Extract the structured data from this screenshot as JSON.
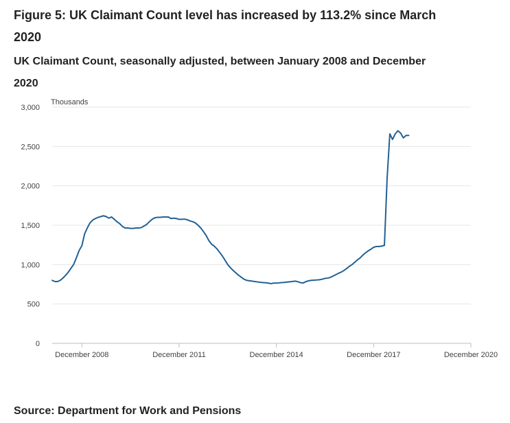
{
  "figure": {
    "title": "Figure 5: UK Claimant Count level has increased by 113.2% since March 2020",
    "subtitle": "UK Claimant Count, seasonally adjusted, between January 2008 and December 2020",
    "source": "Source: Department for Work and Pensions"
  },
  "colors": {
    "line": "#206095",
    "grid": "#e6e6e6",
    "axis": "#bebebe"
  },
  "chart_data": {
    "type": "line",
    "title": "UK Claimant Count, seasonally adjusted, between January 2008 and December 2020",
    "xlabel": "",
    "ylabel": "Thousands",
    "ylim": [
      0,
      3000
    ],
    "yticks": [
      0,
      500,
      1000,
      1500,
      2000,
      2500,
      3000
    ],
    "ytick_labels": [
      "0",
      "500",
      "1,000",
      "1,500",
      "2,000",
      "2,500",
      "3,000"
    ],
    "xticks": [
      {
        "month_index": 11,
        "label": "December 2008"
      },
      {
        "month_index": 47,
        "label": "December 2011"
      },
      {
        "month_index": 83,
        "label": "December 2014"
      },
      {
        "month_index": 119,
        "label": "December 2017"
      },
      {
        "month_index": 155,
        "label": "December 2020"
      }
    ],
    "x_start": "January 2008",
    "x_end": "December 2020",
    "grid": true,
    "series": [
      {
        "name": "UK Claimant Count",
        "points": [
          [
            0,
            800
          ],
          [
            1,
            785
          ],
          [
            2,
            785
          ],
          [
            3,
            800
          ],
          [
            4,
            830
          ],
          [
            5,
            865
          ],
          [
            6,
            905
          ],
          [
            7,
            955
          ],
          [
            8,
            1005
          ],
          [
            9,
            1090
          ],
          [
            10,
            1180
          ],
          [
            11,
            1240
          ],
          [
            12,
            1390
          ],
          [
            13,
            1465
          ],
          [
            14,
            1530
          ],
          [
            15,
            1565
          ],
          [
            16,
            1585
          ],
          [
            17,
            1600
          ],
          [
            18,
            1610
          ],
          [
            19,
            1620
          ],
          [
            20,
            1610
          ],
          [
            21,
            1590
          ],
          [
            22,
            1605
          ],
          [
            23,
            1575
          ],
          [
            24,
            1545
          ],
          [
            25,
            1520
          ],
          [
            26,
            1485
          ],
          [
            27,
            1465
          ],
          [
            28,
            1465
          ],
          [
            29,
            1460
          ],
          [
            30,
            1460
          ],
          [
            31,
            1465
          ],
          [
            32,
            1465
          ],
          [
            33,
            1470
          ],
          [
            34,
            1490
          ],
          [
            35,
            1510
          ],
          [
            36,
            1545
          ],
          [
            37,
            1575
          ],
          [
            38,
            1595
          ],
          [
            39,
            1600
          ],
          [
            40,
            1600
          ],
          [
            41,
            1605
          ],
          [
            42,
            1605
          ],
          [
            43,
            1605
          ],
          [
            44,
            1585
          ],
          [
            45,
            1590
          ],
          [
            46,
            1585
          ],
          [
            47,
            1575
          ],
          [
            48,
            1575
          ],
          [
            49,
            1578
          ],
          [
            50,
            1570
          ],
          [
            51,
            1555
          ],
          [
            52,
            1545
          ],
          [
            53,
            1530
          ],
          [
            54,
            1500
          ],
          [
            55,
            1465
          ],
          [
            56,
            1420
          ],
          [
            57,
            1370
          ],
          [
            58,
            1305
          ],
          [
            59,
            1260
          ],
          [
            60,
            1235
          ],
          [
            61,
            1200
          ],
          [
            62,
            1155
          ],
          [
            63,
            1110
          ],
          [
            64,
            1055
          ],
          [
            65,
            1000
          ],
          [
            66,
            960
          ],
          [
            67,
            925
          ],
          [
            68,
            895
          ],
          [
            69,
            865
          ],
          [
            70,
            840
          ],
          [
            71,
            815
          ],
          [
            72,
            800
          ],
          [
            73,
            795
          ],
          [
            74,
            790
          ],
          [
            75,
            785
          ],
          [
            76,
            780
          ],
          [
            77,
            775
          ],
          [
            78,
            772
          ],
          [
            79,
            770
          ],
          [
            80,
            765
          ],
          [
            81,
            758
          ],
          [
            82,
            765
          ],
          [
            83,
            765
          ],
          [
            84,
            768
          ],
          [
            85,
            772
          ],
          [
            86,
            774
          ],
          [
            87,
            778
          ],
          [
            88,
            782
          ],
          [
            89,
            786
          ],
          [
            90,
            790
          ],
          [
            91,
            782
          ],
          [
            92,
            770
          ],
          [
            93,
            768
          ],
          [
            94,
            785
          ],
          [
            95,
            795
          ],
          [
            96,
            800
          ],
          [
            97,
            802
          ],
          [
            98,
            805
          ],
          [
            99,
            808
          ],
          [
            100,
            815
          ],
          [
            101,
            825
          ],
          [
            102,
            828
          ],
          [
            103,
            838
          ],
          [
            104,
            855
          ],
          [
            105,
            872
          ],
          [
            106,
            890
          ],
          [
            107,
            905
          ],
          [
            108,
            925
          ],
          [
            109,
            950
          ],
          [
            110,
            978
          ],
          [
            111,
            1000
          ],
          [
            112,
            1030
          ],
          [
            113,
            1060
          ],
          [
            114,
            1085
          ],
          [
            115,
            1120
          ],
          [
            116,
            1150
          ],
          [
            117,
            1175
          ],
          [
            118,
            1195
          ],
          [
            119,
            1220
          ],
          [
            120,
            1230
          ],
          [
            121,
            1230
          ],
          [
            122,
            1235
          ],
          [
            123,
            1245
          ],
          [
            124,
            2100
          ],
          [
            125,
            2660
          ],
          [
            126,
            2590
          ],
          [
            127,
            2660
          ],
          [
            128,
            2700
          ],
          [
            129,
            2670
          ],
          [
            130,
            2610
          ],
          [
            131,
            2640
          ],
          [
            132,
            2640
          ]
        ]
      }
    ]
  }
}
